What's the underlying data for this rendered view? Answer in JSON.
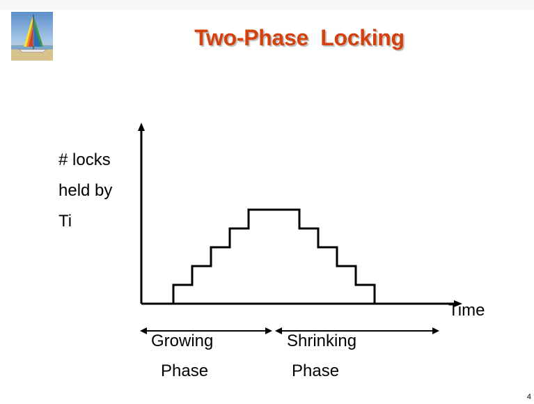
{
  "slide": {
    "title": "Two-Phase  Locking",
    "page_number": "4"
  },
  "diagram": {
    "y_axis_label_lines": [
      "# locks",
      "held by",
      "Ti"
    ],
    "x_axis_label": "Time",
    "growing_phase": [
      "Growing",
      "Phase"
    ],
    "shrinking_phase": [
      "Shrinking",
      "Phase"
    ]
  },
  "colors": {
    "title": "#d6400d",
    "lines": "#000000"
  }
}
